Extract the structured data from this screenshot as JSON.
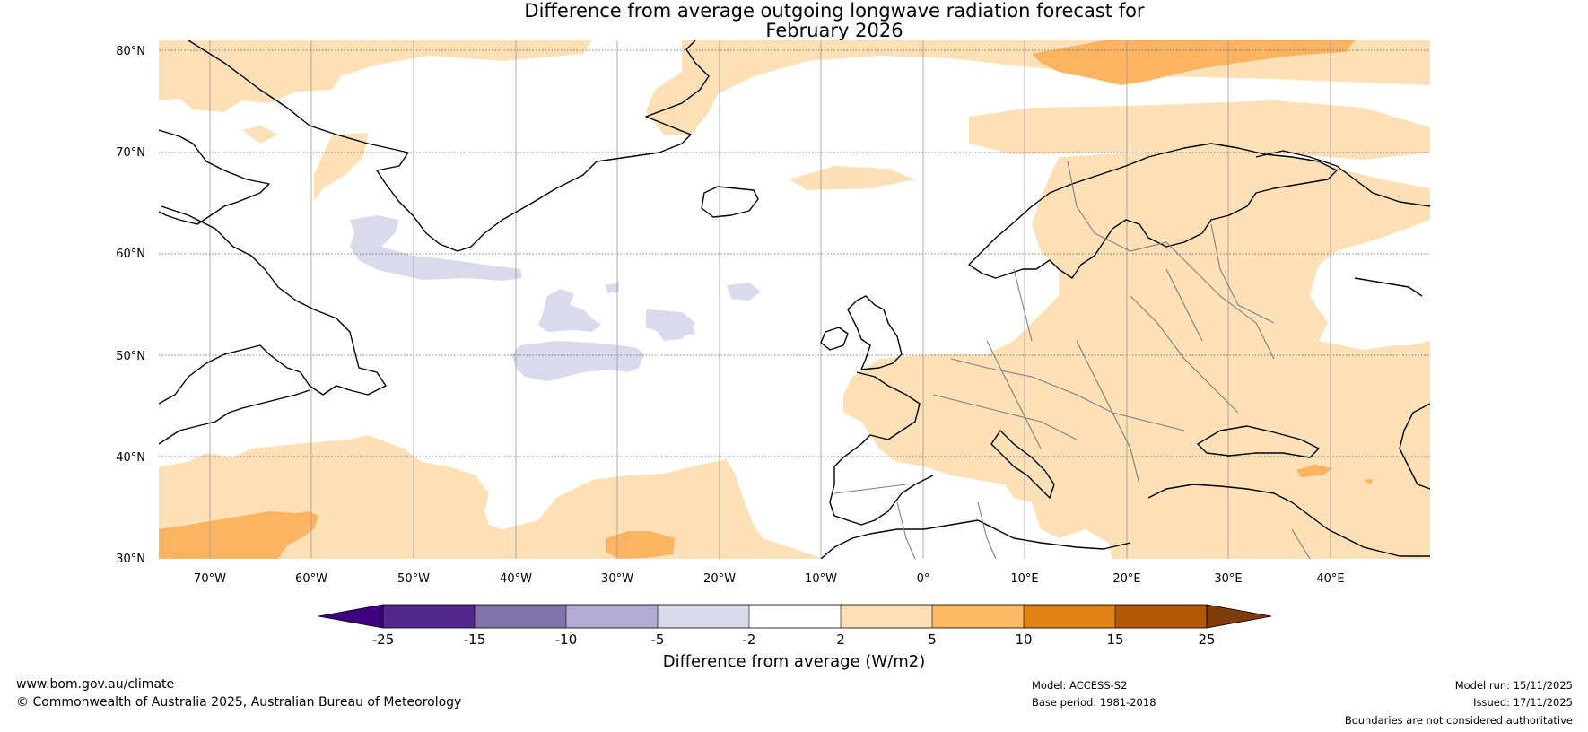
{
  "title": {
    "line1": "Difference from average outgoing longwave radiation forecast for",
    "line2": "February 2026"
  },
  "map": {
    "lat_labels": [
      "80°N",
      "70°N",
      "60°N",
      "50°N",
      "40°N",
      "30°N"
    ],
    "lon_labels": [
      "70°W",
      "60°W",
      "50°W",
      "40°W",
      "30°W",
      "20°W",
      "10°W",
      "0°",
      "10°E",
      "20°E",
      "30°E",
      "40°E"
    ],
    "colors": {
      "ocean_bg": "#ffffff",
      "pos_2_5": "#fde0b6",
      "pos_5_10": "#fcb461",
      "neg_2_5": "#d9daeb",
      "coast": "#000000",
      "border": "#7f7f7f"
    }
  },
  "colorbar": {
    "labels": [
      "-25",
      "-15",
      "-10",
      "-5",
      "-2",
      "2",
      "5",
      "10",
      "15",
      "25"
    ],
    "colors": [
      "#3f007d",
      "#54278f",
      "#8073ac",
      "#b2abd2",
      "#d8daeb",
      "#ffffff",
      "#fee0b6",
      "#fdb863",
      "#e08214",
      "#b35806",
      "#7f3b08"
    ],
    "title": "Difference from average (W/m2)"
  },
  "footer": {
    "website": "www.bom.gov.au/climate",
    "copyright": "© Commonwealth of Australia 2025, Australian Bureau of Meteorology",
    "model": "Model: ACCESS-S2",
    "base_period": "Base period: 1981-2018",
    "model_run": "Model run: 15/11/2025",
    "issued": "Issued: 17/11/2025",
    "disclaimer": "Boundaries are not considered authoritative"
  }
}
